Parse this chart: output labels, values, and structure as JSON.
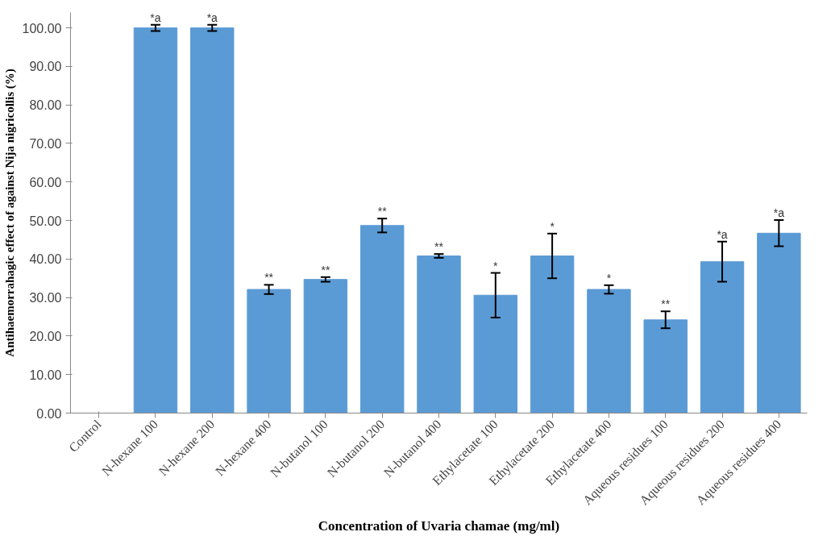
{
  "chart_data": {
    "type": "bar",
    "xlabel": "Concentration of Uvaria chamae (mg/ml)",
    "ylabel": "Antihaemorrahagic effect of against Nija nigricollis (%)",
    "categories": [
      "Control",
      "N-hexane 100",
      "N-hexane 200",
      "N-hexane 400",
      "N-butanol 100",
      "N-butanol 200",
      "N-butanol 400",
      "Ethylacetate 100",
      "Ethylacetate 200",
      "Ethylacetate 400",
      "Aqueous residues 100",
      "Aqueous residues 200",
      "Aqueous residues 400"
    ],
    "values": [
      0,
      100,
      100,
      32.1,
      34.7,
      48.7,
      40.8,
      30.6,
      40.8,
      32.1,
      24.2,
      39.3,
      46.7
    ],
    "errors": [
      null,
      0.8,
      0.8,
      1.2,
      0.6,
      1.8,
      0.5,
      5.8,
      5.8,
      1.1,
      2.2,
      5.2,
      3.4
    ],
    "color": "#5b9bd5",
    "ylim": [
      0,
      104
    ],
    "yticks": [
      {
        "value": 0,
        "label": "0.00"
      },
      {
        "value": 10,
        "label": "10.00"
      },
      {
        "value": 20,
        "label": "20.00"
      },
      {
        "value": 30,
        "label": "30.00"
      },
      {
        "value": 40,
        "label": "40.00"
      },
      {
        "value": 50,
        "label": "50.00"
      },
      {
        "value": 60,
        "label": "60.00"
      },
      {
        "value": 70,
        "label": "70.00"
      },
      {
        "value": 80,
        "label": "80.00"
      },
      {
        "value": 90,
        "label": "90.00"
      },
      {
        "value": 100,
        "label": "100.00"
      }
    ],
    "grid": false,
    "annotations": [
      {
        "text": "*a",
        "x": "N-hexane 100",
        "y": 100.8
      },
      {
        "text": "*a",
        "x": "N-hexane 200",
        "y": 100.8
      },
      {
        "text": "**",
        "x": "N-hexane 400",
        "y": 33.3
      },
      {
        "text": "**",
        "x": "N-butanol 100",
        "y": 35.3
      },
      {
        "text": "**",
        "x": "N-butanol 200",
        "y": 50.5
      },
      {
        "text": "**",
        "x": "N-butanol 400",
        "y": 41.3
      },
      {
        "text": "*",
        "x": "Ethylacetate 100",
        "y": 36.4
      },
      {
        "text": "*",
        "x": "Ethylacetate 200",
        "y": 46.6
      },
      {
        "text": "*",
        "x": "Ethylacetate 400",
        "y": 33.2
      },
      {
        "text": "**",
        "x": "Aqueous residues 100",
        "y": 26.4
      },
      {
        "text": "*a",
        "x": "Aqueous residues 200",
        "y": 44.5
      },
      {
        "text": "*a",
        "x": "Aqueous residues 400",
        "y": 50.1
      }
    ]
  }
}
